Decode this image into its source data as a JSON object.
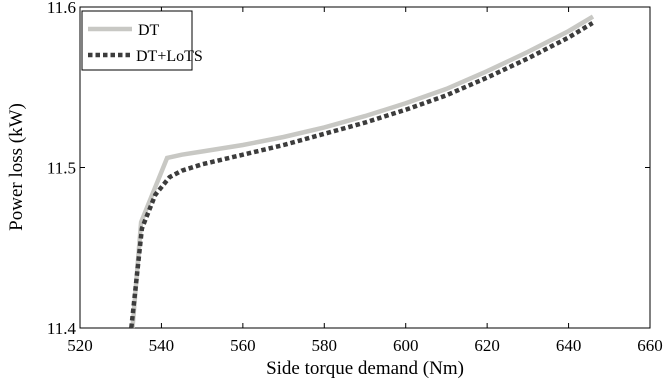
{
  "chart_data": {
    "type": "line",
    "title": "",
    "xlabel": "Side torque demand (Nm)",
    "ylabel": "Power loss (kW)",
    "xlim": [
      520,
      660
    ],
    "ylim": [
      11.4,
      11.6
    ],
    "xticks": [
      "520",
      "540",
      "560",
      "580",
      "600",
      "620",
      "640",
      "660"
    ],
    "yticks": [
      "11.4",
      "11.5",
      "11.6"
    ],
    "grid": false,
    "legend_position": "top-left",
    "series": [
      {
        "name": "DT",
        "color": "#c8c8c4",
        "style": "solid",
        "x": [
          532.9,
          535.0,
          541.4,
          545,
          550,
          560,
          570,
          580,
          590,
          600,
          610,
          620,
          630,
          640,
          646.0
        ],
        "y": [
          11.4,
          11.466,
          11.506,
          11.508,
          11.51,
          11.514,
          11.519,
          11.525,
          11.532,
          11.54,
          11.549,
          11.56,
          11.572,
          11.585,
          11.594
        ]
      },
      {
        "name": "DT+LoTS",
        "color": "#3c3c3c",
        "style": "dotted",
        "x": [
          532.6,
          535.2,
          538.5,
          542.0,
          545,
          550,
          560,
          570,
          580,
          590,
          600,
          610,
          620,
          630,
          640,
          645.9
        ],
        "y": [
          11.4,
          11.462,
          11.483,
          11.494,
          11.498,
          11.502,
          11.508,
          11.514,
          11.521,
          11.528,
          11.536,
          11.545,
          11.556,
          11.568,
          11.581,
          11.59
        ]
      }
    ]
  }
}
